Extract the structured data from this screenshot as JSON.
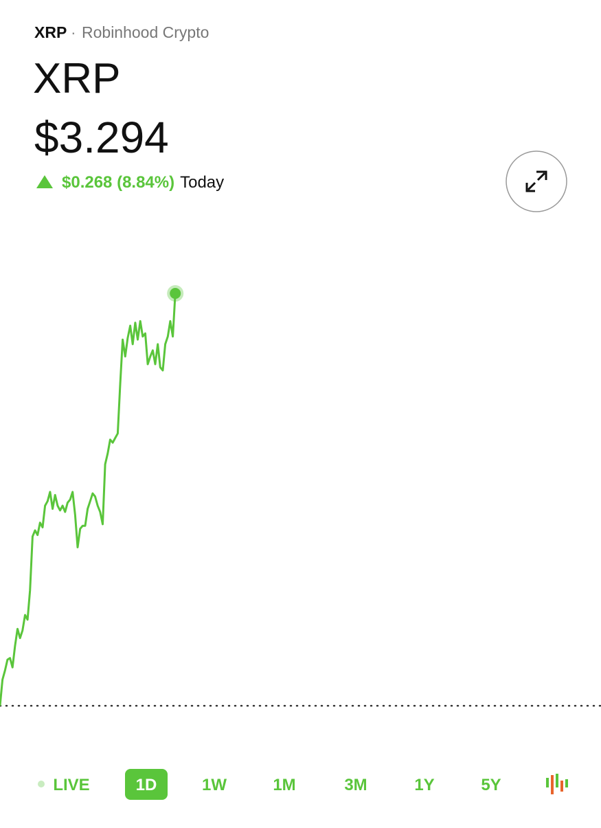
{
  "header": {
    "symbol": "XRP",
    "source": "Robinhood Crypto"
  },
  "asset": {
    "name": "XRP",
    "price": "$3.294",
    "change": "$0.268 (8.84%)",
    "period_label": "Today"
  },
  "chart_data": {
    "type": "line",
    "color": "#5ac53b",
    "xlim": [
      0,
      24
    ],
    "ylim": [
      3.01,
      3.34
    ],
    "baseline": 3.026,
    "x": [
      0,
      0.1,
      0.2,
      0.3,
      0.4,
      0.5,
      0.6,
      0.7,
      0.8,
      0.9,
      1,
      1.1,
      1.2,
      1.3,
      1.4,
      1.5,
      1.6,
      1.7,
      1.8,
      1.9,
      2,
      2.1,
      2.2,
      2.3,
      2.4,
      2.5,
      2.6,
      2.7,
      2.8,
      2.9,
      3,
      3.1,
      3.2,
      3.3,
      3.4,
      3.5,
      3.6,
      3.7,
      3.8,
      3.9,
      4,
      4.1,
      4.2,
      4.3,
      4.4,
      4.5,
      4.6,
      4.7,
      4.8,
      4.9,
      5,
      5.1,
      5.2,
      5.3,
      5.4,
      5.5,
      5.6,
      5.7,
      5.8,
      5.9,
      6,
      6.1,
      6.2,
      6.3,
      6.4,
      6.5,
      6.6,
      6.7,
      6.8,
      6.9,
      7
    ],
    "values": [
      3.026,
      3.043,
      3.049,
      3.056,
      3.057,
      3.051,
      3.065,
      3.076,
      3.07,
      3.075,
      3.085,
      3.082,
      3.101,
      3.136,
      3.14,
      3.137,
      3.145,
      3.142,
      3.156,
      3.159,
      3.165,
      3.154,
      3.163,
      3.156,
      3.153,
      3.156,
      3.152,
      3.158,
      3.16,
      3.165,
      3.15,
      3.129,
      3.141,
      3.143,
      3.143,
      3.154,
      3.159,
      3.164,
      3.162,
      3.156,
      3.152,
      3.144,
      3.183,
      3.19,
      3.199,
      3.197,
      3.2,
      3.203,
      3.235,
      3.264,
      3.253,
      3.265,
      3.273,
      3.261,
      3.275,
      3.264,
      3.276,
      3.266,
      3.268,
      3.248,
      3.253,
      3.257,
      3.248,
      3.261,
      3.246,
      3.244,
      3.261,
      3.266,
      3.276,
      3.266,
      3.294
    ]
  },
  "periods": {
    "items": [
      "LIVE",
      "1D",
      "1W",
      "1M",
      "3M",
      "1Y",
      "5Y"
    ],
    "selected": "1D"
  }
}
